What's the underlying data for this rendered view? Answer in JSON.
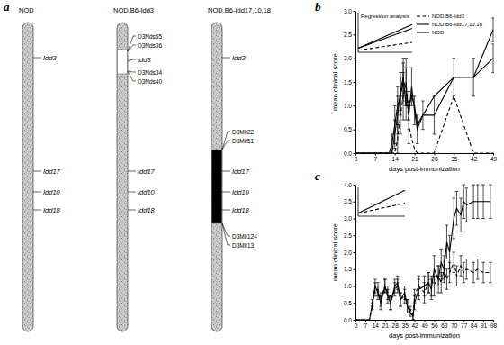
{
  "panel_labels": [
    "a",
    "b",
    "c"
  ],
  "diagram": {
    "chromosomes": [
      {
        "title": "NOD",
        "loci": [
          "Idd3",
          "Idd17",
          "Idd10",
          "Idd18"
        ]
      },
      {
        "title": "NOD.B6-Idd3",
        "loci": [
          "D3Nds55",
          "D3Nds36",
          "Idd3",
          "D3Nds34",
          "D3Nds40",
          "Idd17",
          "Idd10",
          "Idd18"
        ]
      },
      {
        "title": "NOD.B6-Idd17,10,18",
        "loci": [
          "Idd3",
          "D3Mit22",
          "D3Mit51",
          "Idd17",
          "Idd10",
          "Idd18",
          "D3Mit124",
          "D3Mit13"
        ]
      }
    ]
  },
  "chart_data": [
    {
      "type": "line",
      "x_label": "days post-immunization",
      "y_label": "mean clinical score",
      "x": [
        0,
        7,
        12,
        13,
        14,
        15,
        16,
        17,
        18,
        19,
        20,
        21,
        22,
        24,
        28,
        35,
        42,
        49
      ],
      "xlim": [
        0,
        49
      ],
      "xticks": [
        0,
        7,
        14,
        21,
        28,
        35,
        42,
        49
      ],
      "ylim": [
        0,
        3
      ],
      "yticks": [
        {
          "value": 0,
          "label": "0.0"
        },
        0.5,
        {
          "value": 1,
          "label": "1.0"
        },
        1.5,
        {
          "value": 2,
          "label": "2.0"
        },
        2.5,
        {
          "value": 3,
          "label": "3.0"
        }
      ],
      "legend": "upper right",
      "series": [
        {
          "name": "NOD.B6-Idd3",
          "color": "#000000",
          "line_style": "dashed",
          "values": [
            0,
            0,
            0,
            0,
            0,
            0.3,
            0.8,
            1.2,
            1.5,
            0.6,
            0.3,
            0.1,
            0,
            0,
            0,
            1.2,
            0,
            0
          ],
          "errors": [
            null,
            null,
            null,
            null,
            null,
            0.3,
            0.4,
            0.5,
            0.5,
            0.4,
            null,
            null,
            null,
            null,
            null,
            null,
            null,
            null
          ]
        },
        {
          "name": "NOD.B6-Idd17,10,18",
          "color": "#000000",
          "line_style": "solid",
          "values": [
            0,
            0,
            0,
            0.2,
            0.6,
            1.0,
            1.2,
            1.5,
            1.4,
            0.8,
            1.4,
            0.9,
            0.5,
            0.8,
            0.8,
            1.6,
            1.6,
            2.6
          ],
          "errors": [
            null,
            null,
            null,
            0.2,
            0.4,
            0.4,
            0.4,
            0.4,
            0.4,
            0.3,
            0.4,
            0.3,
            0.3,
            0.3,
            0.4,
            0.4,
            0.4,
            0.25
          ]
        },
        {
          "name": "NOD",
          "color": "#000000",
          "line_style": "solid",
          "values": [
            0,
            0,
            0,
            0,
            0.4,
            0.8,
            1.3,
            1.6,
            1.0,
            1.0,
            1.2,
            1.0,
            0.6,
            0.8,
            1.2,
            1.6,
            1.6,
            2.0
          ],
          "errors": [
            null,
            null,
            null,
            null,
            0.3,
            0.4,
            0.4,
            0.4,
            0.3,
            0.3,
            null,
            null,
            null,
            null,
            null,
            null,
            null,
            0.3
          ]
        }
      ]
    },
    {
      "type": "line",
      "title": "Regression analysis",
      "x": [
        0,
        1
      ],
      "xlim": [
        0,
        1
      ],
      "ylim": [
        0,
        1
      ],
      "tick_labels": false,
      "series": [
        {
          "color": "#000000",
          "line_style": "solid",
          "values": [
            0.1,
            0.7
          ]
        },
        {
          "color": "#000000",
          "line_style": "solid",
          "values": [
            0.1,
            0.6
          ]
        },
        {
          "color": "#000000",
          "line_style": "dashed",
          "values": [
            0.05,
            0.25
          ]
        }
      ]
    },
    {
      "type": "line",
      "x_label": "days post-immunization",
      "y_label": "mean clinical score",
      "x": [
        0,
        7,
        10,
        12,
        14,
        16,
        18,
        21,
        23,
        25,
        28,
        30,
        32,
        35,
        37,
        39,
        41,
        42,
        45,
        49,
        52,
        54,
        56,
        59,
        61,
        63,
        65,
        67,
        70,
        72,
        75,
        77,
        79,
        84,
        87,
        91,
        96
      ],
      "xlim": [
        0,
        98
      ],
      "xticks": [
        0,
        7,
        14,
        21,
        28,
        35,
        42,
        49,
        56,
        63,
        70,
        77,
        84,
        91,
        98
      ],
      "ylim": [
        0,
        4
      ],
      "yticks": [
        {
          "value": 0,
          "label": "0.0"
        },
        0.5,
        {
          "value": 1,
          "label": "1.0"
        },
        1.5,
        {
          "value": 2,
          "label": "2.0"
        },
        2.5,
        {
          "value": 3,
          "label": "3.0"
        },
        3.5,
        {
          "value": 4,
          "label": "4.0"
        }
      ],
      "series": [
        {
          "color": "#000000",
          "line_style": "solid",
          "values": [
            0,
            0,
            0,
            0.5,
            1.0,
            0.8,
            0.5,
            1.0,
            0.7,
            0.5,
            1.0,
            1.1,
            0.6,
            0.8,
            0.4,
            0.2,
            0.1,
            0.5,
            0.9,
            1.0,
            1.1,
            0.9,
            1.5,
            1.2,
            1.7,
            1.5,
            2.3,
            2.0,
            3.0,
            3.3,
            3.1,
            3.5,
            3.4,
            3.5,
            3.5,
            3.5,
            3.5
          ],
          "errors": [
            null,
            null,
            null,
            0.1,
            0.2,
            0.2,
            0.2,
            0.2,
            0.2,
            0.2,
            0.2,
            0.2,
            0.2,
            0.2,
            0.2,
            0.1,
            0.1,
            0.2,
            0.3,
            0.3,
            0.3,
            0.3,
            0.4,
            0.4,
            0.4,
            0.4,
            0.5,
            0.5,
            0.6,
            0.5,
            0.5,
            0.5,
            0.5,
            0.5,
            0.5,
            0.5,
            0.5
          ]
        },
        {
          "color": "#000000",
          "line_style": "dashed",
          "values": [
            0,
            0,
            0,
            0.4,
            0.9,
            0.9,
            0.6,
            1.0,
            0.8,
            0.5,
            0.9,
            1.0,
            0.6,
            0.7,
            0.4,
            0.3,
            0.1,
            0.7,
            1.0,
            0.8,
            1.1,
            1.0,
            1.0,
            1.3,
            1.1,
            1.5,
            1.2,
            1.4,
            1.7,
            1.3,
            1.6,
            1.4,
            1.5,
            1.4,
            1.5,
            1.4,
            1.4
          ],
          "errors": [
            null,
            null,
            null,
            0.1,
            0.2,
            0.2,
            0.2,
            0.2,
            0.2,
            0.2,
            0.2,
            0.2,
            0.2,
            0.2,
            0.2,
            0.1,
            0.1,
            0.2,
            0.3,
            0.3,
            0.3,
            0.3,
            0.3,
            0.3,
            0.3,
            0.3,
            0.3,
            0.3,
            0.3,
            0.3,
            0.3,
            0.3,
            0.3,
            0.3,
            0.3,
            0.3,
            0.3
          ]
        }
      ]
    },
    {
      "type": "line",
      "x": [
        0,
        1
      ],
      "xlim": [
        0,
        1
      ],
      "ylim": [
        0,
        1
      ],
      "tick_labels": false,
      "series": [
        {
          "color": "#000000",
          "line_style": "solid",
          "values": [
            0.1,
            0.9
          ]
        },
        {
          "color": "#000000",
          "line_style": "dashed",
          "values": [
            0.1,
            0.45
          ]
        }
      ]
    }
  ]
}
